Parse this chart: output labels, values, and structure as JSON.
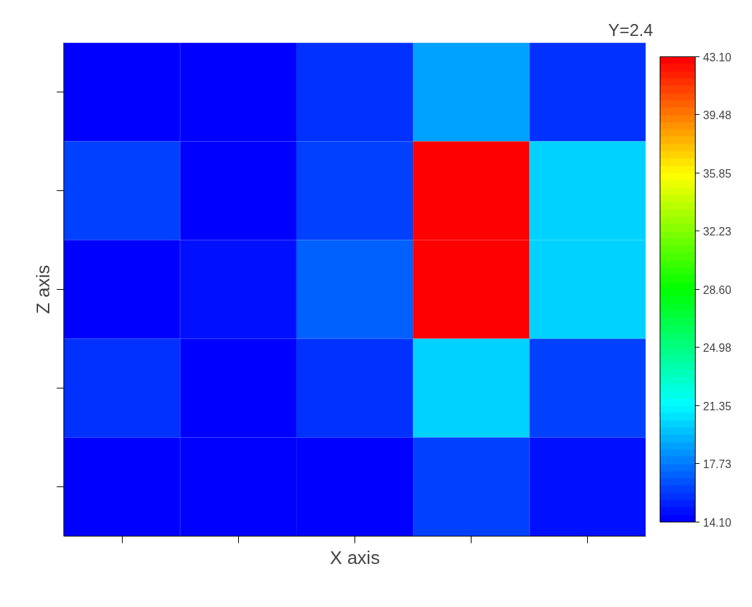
{
  "chart_data": {
    "type": "heatmap",
    "xlabel": "X axis",
    "ylabel": "Z axis",
    "clabel": "Y=2.4",
    "categories": [
      null,
      null,
      null,
      null,
      null
    ],
    "y_categories": [
      null,
      null,
      null,
      null,
      null
    ],
    "cells": [
      [
        14.5,
        14.5,
        15.5,
        19,
        15.5
      ],
      [
        16,
        14.5,
        16,
        43,
        20
      ],
      [
        14.3,
        15,
        17,
        43,
        20
      ],
      [
        15.5,
        14.3,
        15.5,
        20,
        16
      ],
      [
        14.1,
        14.5,
        14.1,
        16,
        15
      ]
    ],
    "clim": [
      14.1,
      43.1
    ],
    "cticks": [
      {
        "value": 14.1,
        "label": "14.10"
      },
      {
        "value": 17.73,
        "label": "17.73"
      },
      {
        "value": 21.35,
        "label": "21.35"
      },
      {
        "value": 24.98,
        "label": "24.98"
      },
      {
        "value": 28.6,
        "label": "28.60"
      },
      {
        "value": 32.23,
        "label": "32.23"
      },
      {
        "value": 35.85,
        "label": "35.85"
      },
      {
        "value": 39.48,
        "label": "39.48"
      },
      {
        "value": 43.1,
        "label": "43.10"
      }
    ]
  }
}
